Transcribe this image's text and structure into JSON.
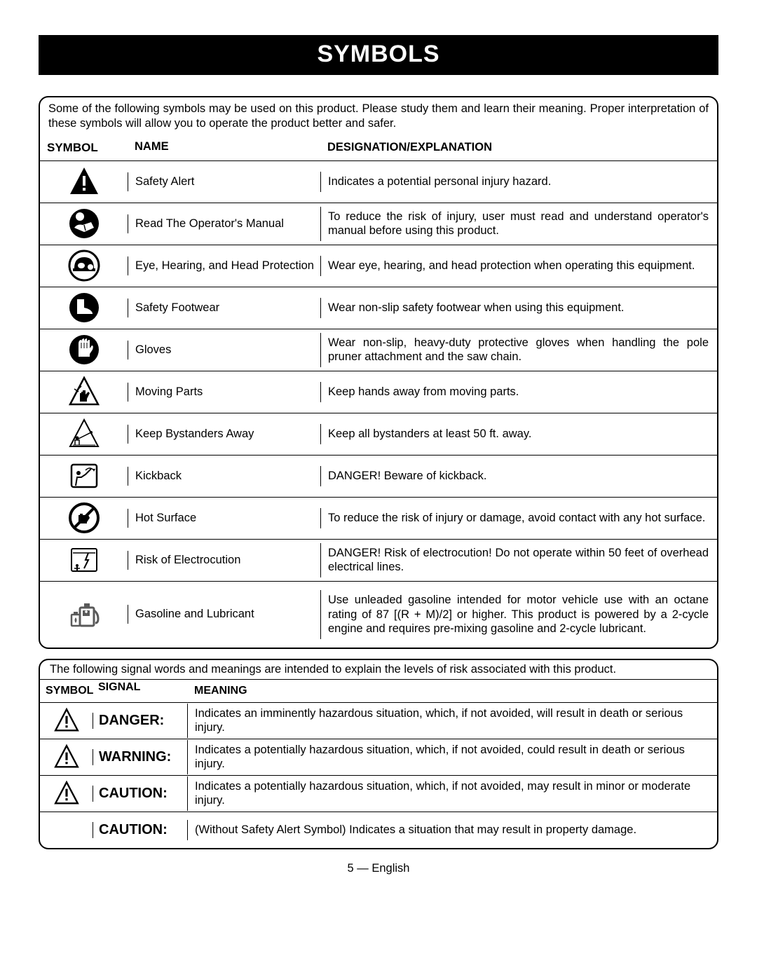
{
  "page_title": "SYMBOLS",
  "intro_text": "Some of the following symbols may be used on this product. Please study them and learn their meaning. Proper interpretation of these symbols will allow you to operate the product better and safer.",
  "columns": {
    "symbol": "Symbol",
    "name": "Name",
    "desc": "Designation/Explanation"
  },
  "rows": [
    {
      "icon": "safety-alert",
      "name": "Safety Alert",
      "desc": "Indicates a potential personal injury hazard."
    },
    {
      "icon": "read-manual",
      "name": "Read The Operator's Manual",
      "desc": "To reduce the risk of injury, user must read and understand operator's manual before using this product."
    },
    {
      "icon": "eye-hearing-head",
      "name": "Eye, Hearing, and Head Protection",
      "desc": "Wear eye, hearing, and head protection when operating this equipment."
    },
    {
      "icon": "safety-footwear",
      "name": "Safety Footwear",
      "desc": "Wear non-slip safety footwear when using this equipment."
    },
    {
      "icon": "gloves",
      "name": "Gloves",
      "desc": "Wear non-slip, heavy-duty protective gloves when handling the pole pruner attachment and the saw chain."
    },
    {
      "icon": "moving-parts",
      "name": "Moving Parts",
      "desc": "Keep hands away from moving parts."
    },
    {
      "icon": "bystanders",
      "name": "Keep Bystanders Away",
      "desc": "Keep all bystanders at least 50 ft. away."
    },
    {
      "icon": "kickback",
      "name": "Kickback",
      "desc": "DANGER! Beware of kickback."
    },
    {
      "icon": "hot-surface",
      "name": "Hot Surface",
      "desc": "To reduce the risk of injury or damage, avoid contact with any hot surface."
    },
    {
      "icon": "electrocution",
      "name": "Risk of Electrocution",
      "desc": "DANGER! Risk of electrocution! Do not operate within 50 feet of overhead electrical lines."
    },
    {
      "icon": "gasoline",
      "name": "Gasoline and Lubricant",
      "desc": "Use unleaded gasoline intended for motor vehicle use with an octane rating of 87 [(R + M)/2] or higher. This product is powered by a 2-cycle engine and requires pre-mixing gasoline and 2-cycle lubricant."
    }
  ],
  "intro2_text": "The following signal words and meanings are intended to explain the levels of risk associated with this product.",
  "columns2": {
    "symbol": "Symbol",
    "signal": "Signal",
    "meaning": "Meaning"
  },
  "rows2": [
    {
      "has_icon": true,
      "signal": "DANGER:",
      "meaning": "Indicates an imminently hazardous situation, which, if not avoided, will result in death or serious injury."
    },
    {
      "has_icon": true,
      "signal": "WARNING:",
      "meaning": "Indicates a potentially hazardous situation, which, if not avoided, could result in death or serious injury."
    },
    {
      "has_icon": true,
      "signal": "CAUTION:",
      "meaning": "Indicates a potentially hazardous situation, which, if not avoided, may result in minor or moderate injury."
    },
    {
      "has_icon": false,
      "signal": "CAUTION:",
      "meaning": "(Without Safety Alert Symbol) Indicates a situation that may result in property damage."
    }
  ],
  "footer": "5 — English",
  "style": {
    "icon_color": "#000000",
    "background": "#ffffff",
    "border_radius": 14,
    "title_bg": "#000000",
    "title_fg": "#ffffff",
    "font_body": 16.5,
    "font_title": 34
  }
}
